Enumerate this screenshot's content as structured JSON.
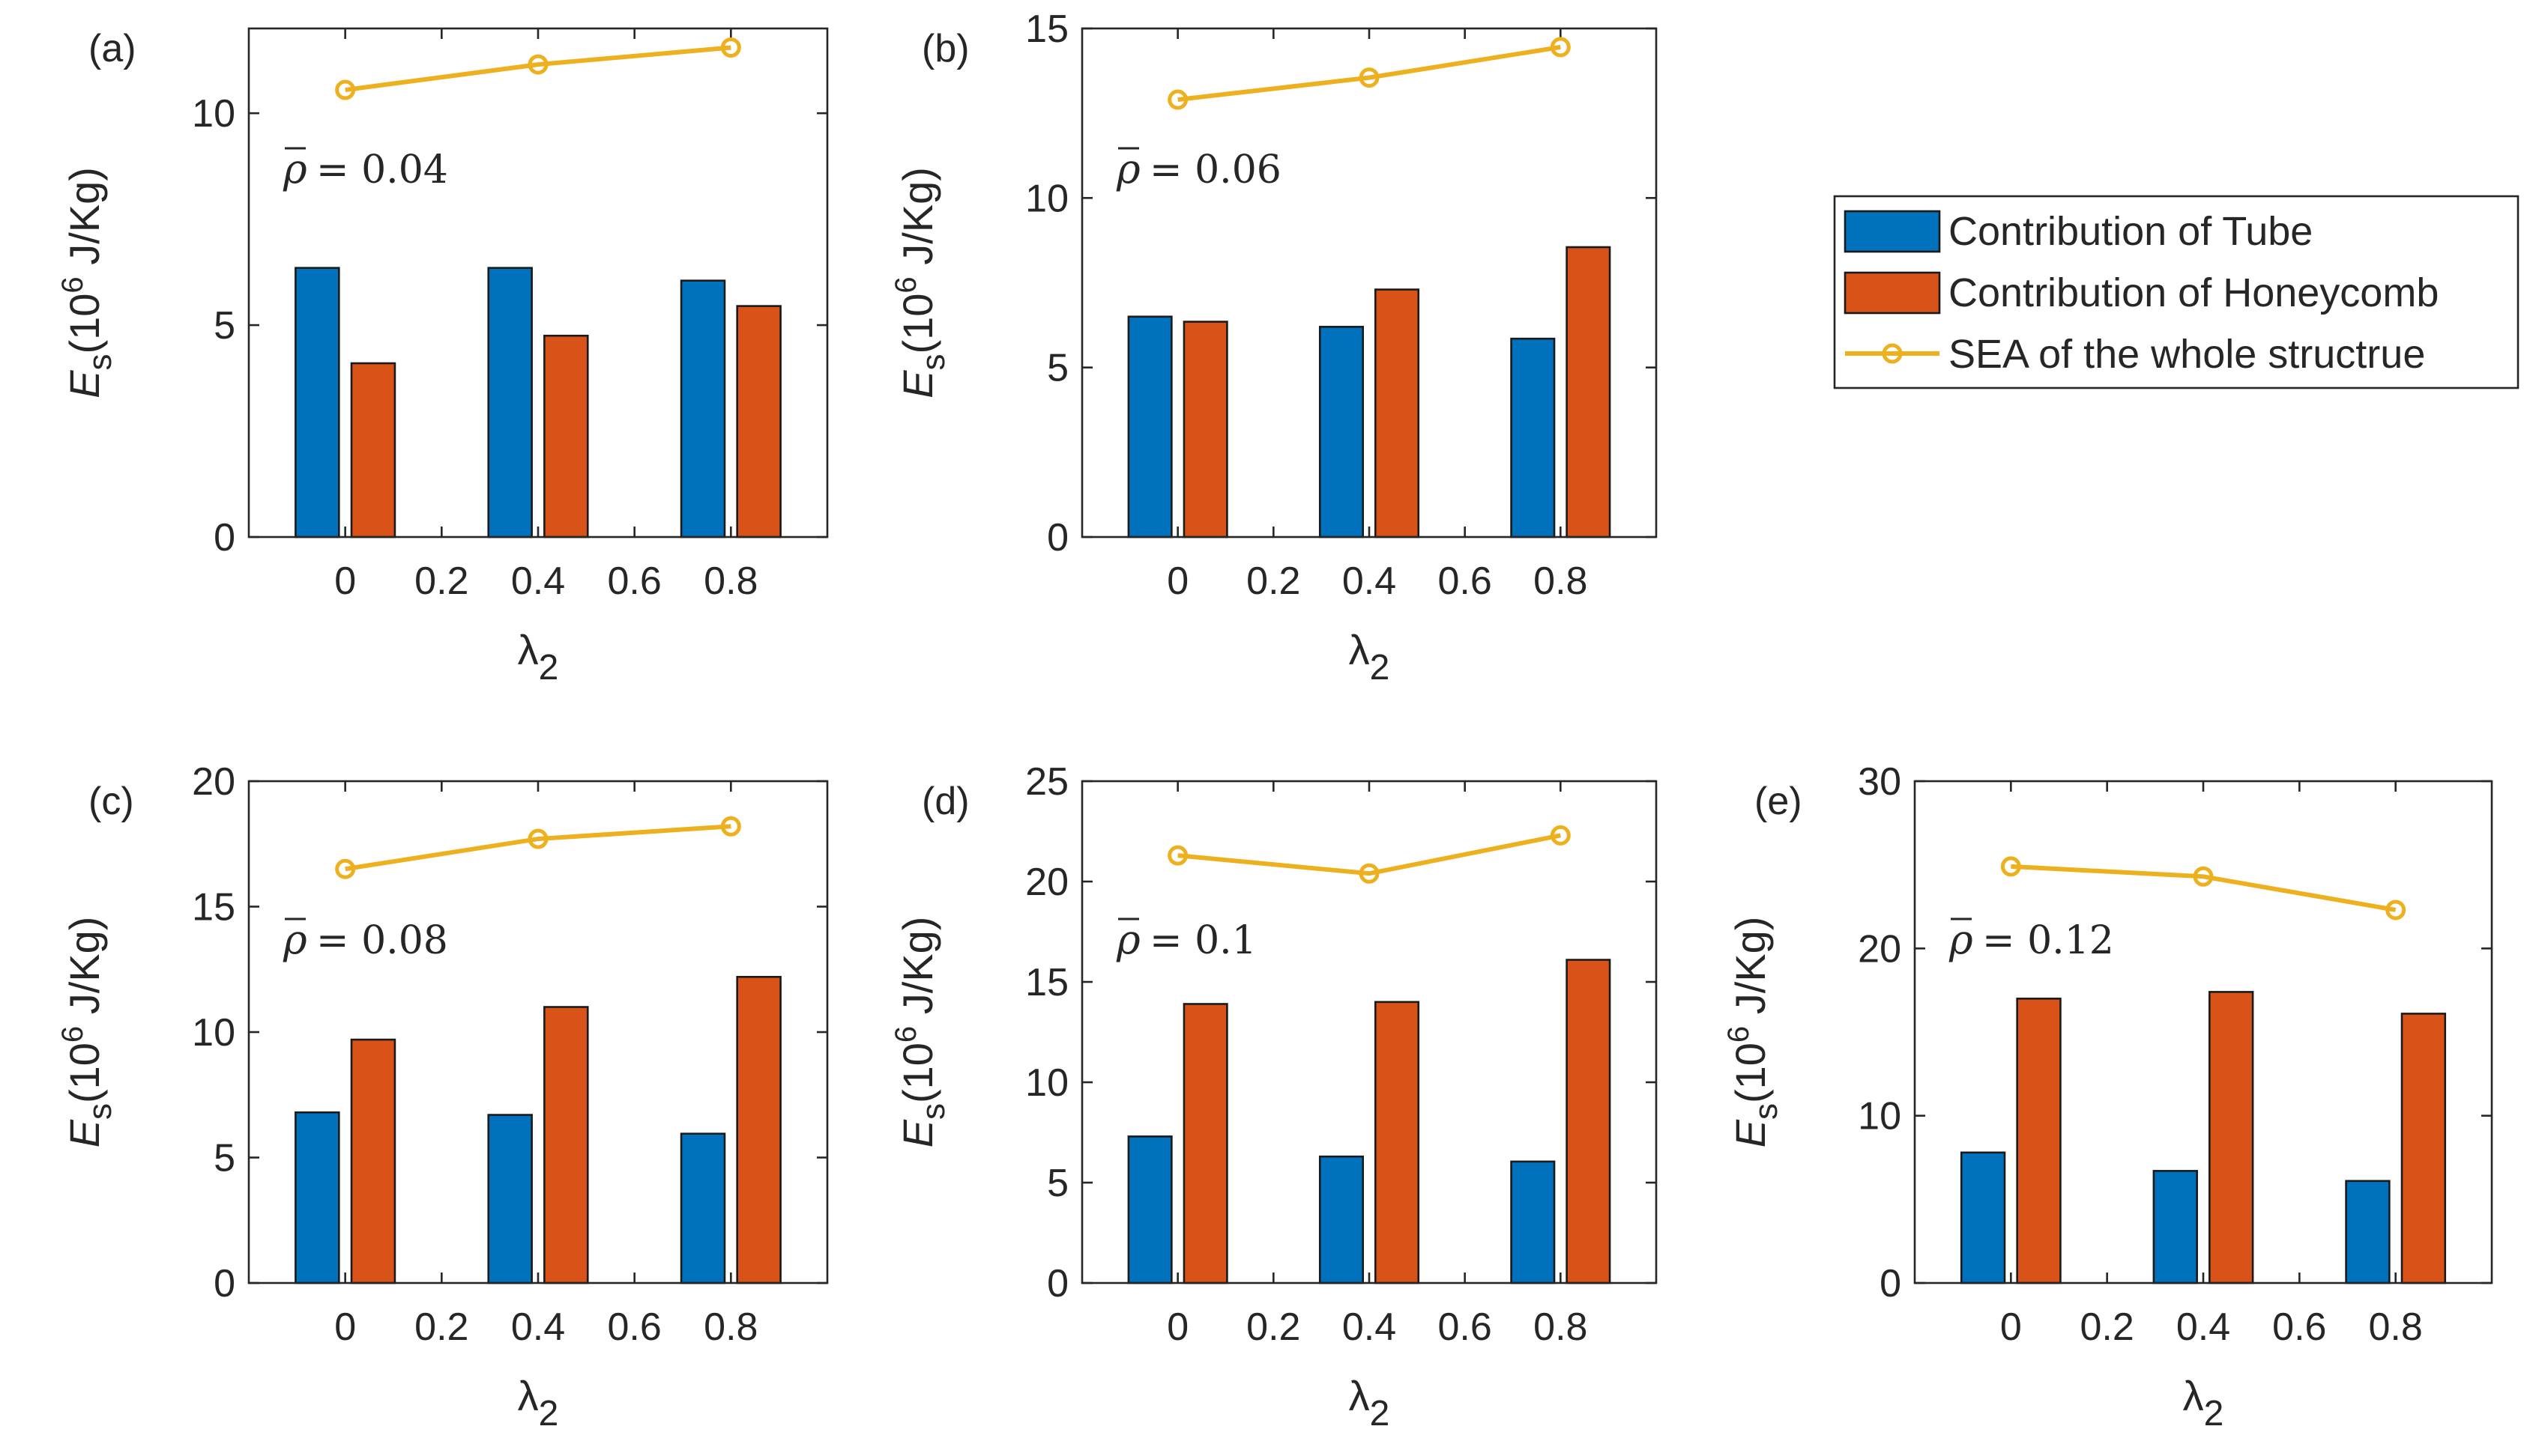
{
  "colors": {
    "tube": "#0072BD",
    "honeycomb": "#D95319",
    "sea": "#EDB120"
  },
  "legend": {
    "placement": "right",
    "items": [
      {
        "label": "Contribution of Tube",
        "kind": "bar",
        "series": "tube"
      },
      {
        "label": "Contribution of Honeycomb",
        "kind": "bar",
        "series": "honeycomb"
      },
      {
        "label": "SEA of the whole structrue",
        "kind": "line-marker",
        "series": "sea"
      }
    ]
  },
  "chart_data": [
    {
      "type": "bar",
      "panel_label": "(a)",
      "annotation": "= 0.04",
      "categories": [
        "0",
        "0.4",
        "0.8"
      ],
      "xticks": [
        "0",
        "0.2",
        "0.4",
        "0.6",
        "0.8"
      ],
      "xlabel": "λ",
      "xlabel_sub": "2",
      "ylabel": "E",
      "ylabel_sub": "s",
      "ylabel_unit": "(10",
      "ylabel_sup": "6",
      "ylabel_unit_tail": " J/Kg)",
      "ylim": [
        0,
        12
      ],
      "yticks": [
        0,
        5,
        10
      ],
      "series": [
        {
          "name": "Contribution of Tube",
          "key": "tube",
          "values": [
            6.35,
            6.35,
            6.05
          ]
        },
        {
          "name": "Contribution of Honeycomb",
          "key": "honeycomb",
          "values": [
            4.1,
            4.75,
            5.45
          ]
        },
        {
          "name": "SEA of the whole structrue",
          "key": "sea",
          "values": [
            10.55,
            11.15,
            11.55
          ]
        }
      ]
    },
    {
      "type": "bar",
      "panel_label": "(b)",
      "annotation": "= 0.06",
      "categories": [
        "0",
        "0.4",
        "0.8"
      ],
      "xticks": [
        "0",
        "0.2",
        "0.4",
        "0.6",
        "0.8"
      ],
      "xlabel": "λ",
      "xlabel_sub": "2",
      "ylabel": "E",
      "ylabel_sub": "s",
      "ylabel_unit": "(10",
      "ylabel_sup": "6",
      "ylabel_unit_tail": " J/Kg)",
      "ylim": [
        0,
        15
      ],
      "yticks": [
        0,
        5,
        10,
        15
      ],
      "series": [
        {
          "name": "Contribution of Tube",
          "key": "tube",
          "values": [
            6.5,
            6.2,
            5.85
          ]
        },
        {
          "name": "Contribution of Honeycomb",
          "key": "honeycomb",
          "values": [
            6.35,
            7.3,
            8.55
          ]
        },
        {
          "name": "SEA of the whole structrue",
          "key": "sea",
          "values": [
            12.9,
            13.55,
            14.45
          ]
        }
      ]
    },
    {
      "type": "bar",
      "panel_label": "(c)",
      "annotation": "= 0.08",
      "categories": [
        "0",
        "0.4",
        "0.8"
      ],
      "xticks": [
        "0",
        "0.2",
        "0.4",
        "0.6",
        "0.8"
      ],
      "xlabel": "λ",
      "xlabel_sub": "2",
      "ylabel": "E",
      "ylabel_sub": "s",
      "ylabel_unit": "(10",
      "ylabel_sup": "6",
      "ylabel_unit_tail": " J/Kg)",
      "ylim": [
        0,
        20
      ],
      "yticks": [
        0,
        5,
        10,
        15,
        20
      ],
      "series": [
        {
          "name": "Contribution of Tube",
          "key": "tube",
          "values": [
            6.8,
            6.7,
            5.95
          ]
        },
        {
          "name": "Contribution of Honeycomb",
          "key": "honeycomb",
          "values": [
            9.7,
            11.0,
            12.2
          ]
        },
        {
          "name": "SEA of the whole structrue",
          "key": "sea",
          "values": [
            16.5,
            17.7,
            18.2
          ]
        }
      ]
    },
    {
      "type": "bar",
      "panel_label": "(d)",
      "annotation": "= 0.1",
      "categories": [
        "0",
        "0.4",
        "0.8"
      ],
      "xticks": [
        "0",
        "0.2",
        "0.4",
        "0.6",
        "0.8"
      ],
      "xlabel": "λ",
      "xlabel_sub": "2",
      "ylabel": "E",
      "ylabel_sub": "s",
      "ylabel_unit": "(10",
      "ylabel_sup": "6",
      "ylabel_unit_tail": " J/Kg)",
      "ylim": [
        0,
        25
      ],
      "yticks": [
        0,
        5,
        10,
        15,
        20,
        25
      ],
      "series": [
        {
          "name": "Contribution of Tube",
          "key": "tube",
          "values": [
            7.3,
            6.3,
            6.05
          ]
        },
        {
          "name": "Contribution of Honeycomb",
          "key": "honeycomb",
          "values": [
            13.9,
            14.0,
            16.1
          ]
        },
        {
          "name": "SEA of the whole structrue",
          "key": "sea",
          "values": [
            21.3,
            20.4,
            22.3
          ]
        }
      ]
    },
    {
      "type": "bar",
      "panel_label": "(e)",
      "annotation": "= 0.12",
      "categories": [
        "0",
        "0.4",
        "0.8"
      ],
      "xticks": [
        "0",
        "0.2",
        "0.4",
        "0.6",
        "0.8"
      ],
      "xlabel": "λ",
      "xlabel_sub": "2",
      "ylabel": "E",
      "ylabel_sub": "s",
      "ylabel_unit": "(10",
      "ylabel_sup": "6",
      "ylabel_unit_tail": " J/Kg)",
      "ylim": [
        0,
        30
      ],
      "yticks": [
        0,
        10,
        20,
        30
      ],
      "series": [
        {
          "name": "Contribution of Tube",
          "key": "tube",
          "values": [
            7.8,
            6.7,
            6.1
          ]
        },
        {
          "name": "Contribution of Honeycomb",
          "key": "honeycomb",
          "values": [
            17.0,
            17.4,
            16.1
          ]
        },
        {
          "name": "SEA of the whole structrue",
          "key": "sea",
          "values": [
            24.9,
            24.3,
            22.3
          ]
        }
      ]
    }
  ]
}
